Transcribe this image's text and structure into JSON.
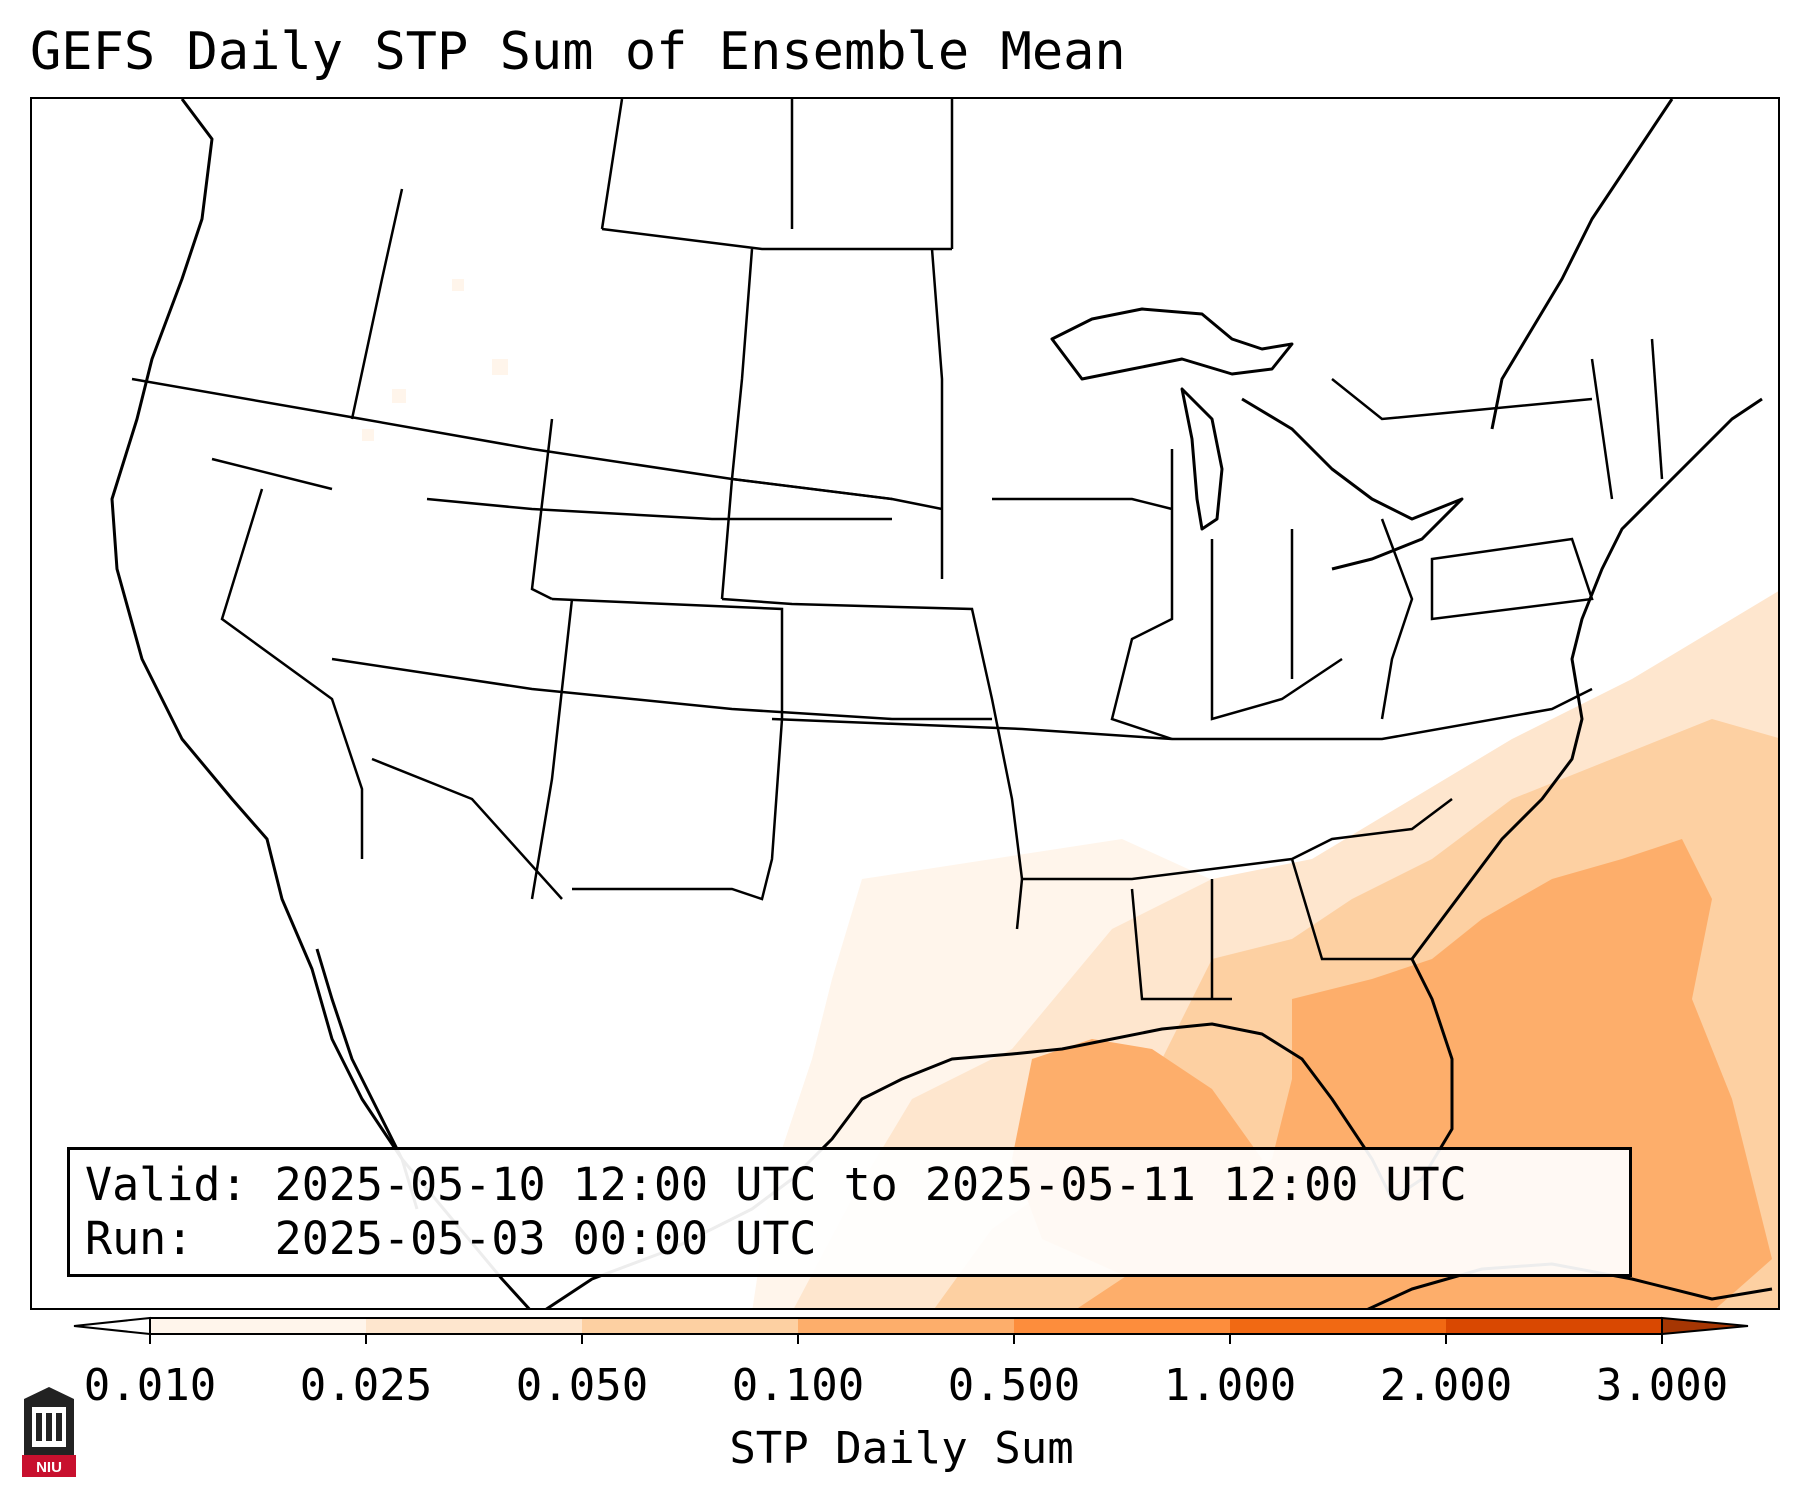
{
  "title": "GEFS Daily STP Sum of Ensemble Mean",
  "info": {
    "valid_label": "Valid:",
    "valid_value": "2025-05-10 12:00 UTC to 2025-05-11 12:00 UTC",
    "run_label": "Run:",
    "run_value": "2025-05-03 00:00 UTC"
  },
  "colorbar": {
    "label": "STP Daily Sum",
    "ticks": [
      "0.010",
      "0.025",
      "0.050",
      "0.100",
      "0.500",
      "1.000",
      "2.000",
      "3.000"
    ],
    "colors": [
      "#fff5eb",
      "#fee6ce",
      "#fdd0a2",
      "#fdae6b",
      "#fd8d3c",
      "#f16913",
      "#d94801",
      "#a63603"
    ],
    "extend": "both"
  },
  "logo": {
    "text": "NIU",
    "icon": "university-logo-icon"
  },
  "map": {
    "region": "Continental United States",
    "field_description_colors": {
      "faint": "#fff5eb",
      "light": "#fee6ce",
      "medium": "#fdd0a2",
      "strong": "#fdae6b"
    }
  }
}
